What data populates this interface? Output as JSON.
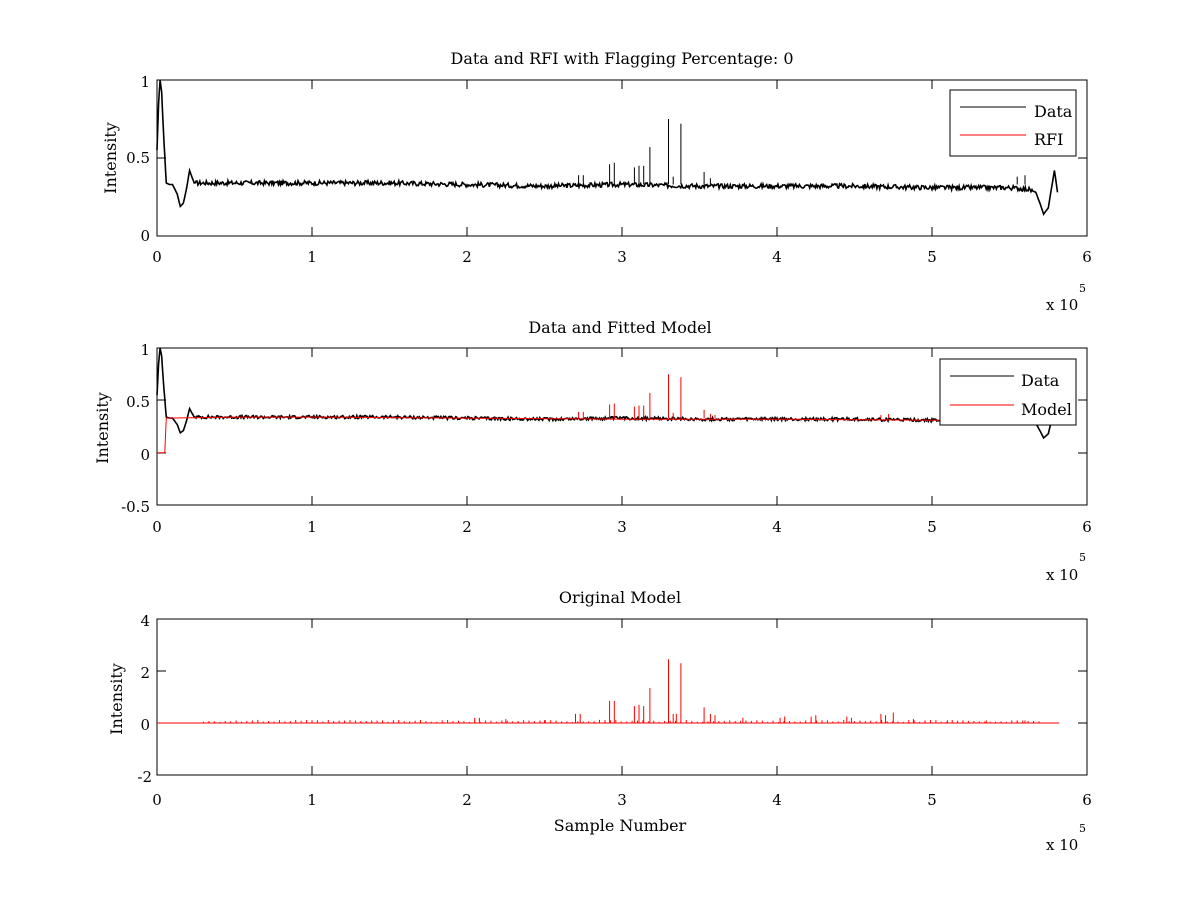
{
  "colors": {
    "data": "#000000",
    "rfi": "#ff0000",
    "axes": "#000000",
    "background": "#ffffff"
  },
  "chart_data": [
    {
      "type": "line",
      "title": "Data and RFI with Flagging Percentage: 0",
      "xlabel": "",
      "ylabel": "Intensity",
      "xlim": [
        0,
        6
      ],
      "ylim": [
        0,
        1
      ],
      "xticks": [
        "0",
        "1",
        "2",
        "3",
        "4",
        "5",
        "6"
      ],
      "yticks": [
        "0",
        "0.5",
        "1"
      ],
      "x_multiplier": {
        "base": "x 10",
        "exp": "5"
      },
      "legend": {
        "position": "top-right",
        "entries": [
          {
            "label": "Data",
            "color": "#000000"
          },
          {
            "label": "RFI",
            "color": "#ff0000"
          }
        ]
      },
      "series": [
        {
          "name": "Data",
          "color": "#000000",
          "points": [
            [
              0,
              0.55
            ],
            [
              0.01,
              0.85
            ],
            [
              0.02,
              1.0
            ],
            [
              0.03,
              0.92
            ],
            [
              0.045,
              0.6
            ],
            [
              0.06,
              0.34
            ],
            [
              0.08,
              0.33
            ],
            [
              0.1,
              0.33
            ],
            [
              0.13,
              0.27
            ],
            [
              0.15,
              0.19
            ],
            [
              0.17,
              0.21
            ],
            [
              0.19,
              0.3
            ],
            [
              0.21,
              0.42
            ],
            [
              0.24,
              0.34
            ],
            [
              0.3,
              0.34
            ],
            [
              0.5,
              0.34
            ],
            [
              1.0,
              0.34
            ],
            [
              1.5,
              0.34
            ],
            [
              2.0,
              0.33
            ],
            [
              2.5,
              0.32
            ],
            [
              3.0,
              0.33
            ],
            [
              3.5,
              0.32
            ],
            [
              4.0,
              0.32
            ],
            [
              4.5,
              0.32
            ],
            [
              5.0,
              0.31
            ],
            [
              5.5,
              0.31
            ],
            [
              5.62,
              0.3
            ],
            [
              5.67,
              0.28
            ],
            [
              5.7,
              0.2
            ],
            [
              5.72,
              0.14
            ],
            [
              5.75,
              0.18
            ],
            [
              5.77,
              0.3
            ],
            [
              5.79,
              0.42
            ],
            [
              5.81,
              0.28
            ]
          ],
          "spikes": [
            [
              2.72,
              0.39
            ],
            [
              2.75,
              0.39
            ],
            [
              2.92,
              0.46
            ],
            [
              2.95,
              0.47
            ],
            [
              3.08,
              0.44
            ],
            [
              3.11,
              0.45
            ],
            [
              3.14,
              0.45
            ],
            [
              3.18,
              0.57
            ],
            [
              3.3,
              0.75
            ],
            [
              3.33,
              0.38
            ],
            [
              3.38,
              0.72
            ],
            [
              3.53,
              0.41
            ],
            [
              3.57,
              0.37
            ],
            [
              5.55,
              0.38
            ],
            [
              5.6,
              0.39
            ]
          ]
        },
        {
          "name": "RFI",
          "color": "#ff0000",
          "points": []
        }
      ]
    },
    {
      "type": "line",
      "title": "Data and Fitted Model",
      "xlabel": "",
      "ylabel": "Intensity",
      "xlim": [
        0,
        6
      ],
      "ylim": [
        -0.5,
        1
      ],
      "xticks": [
        "0",
        "1",
        "2",
        "3",
        "4",
        "5",
        "6"
      ],
      "yticks": [
        "-0.5",
        "0",
        "0.5",
        "1"
      ],
      "x_multiplier": {
        "base": "x 10",
        "exp": "5"
      },
      "legend": {
        "position": "top-right",
        "entries": [
          {
            "label": "Data",
            "color": "#000000"
          },
          {
            "label": "Model",
            "color": "#ff0000"
          }
        ]
      },
      "series": [
        {
          "name": "Data",
          "color": "#000000",
          "points": [
            [
              0,
              0.55
            ],
            [
              0.01,
              0.85
            ],
            [
              0.02,
              1.0
            ],
            [
              0.03,
              0.92
            ],
            [
              0.045,
              0.6
            ],
            [
              0.06,
              0.34
            ],
            [
              0.08,
              0.33
            ],
            [
              0.1,
              0.33
            ],
            [
              0.13,
              0.27
            ],
            [
              0.15,
              0.19
            ],
            [
              0.17,
              0.21
            ],
            [
              0.19,
              0.3
            ],
            [
              0.21,
              0.42
            ],
            [
              0.24,
              0.34
            ],
            [
              0.3,
              0.34
            ],
            [
              0.5,
              0.34
            ],
            [
              1.0,
              0.34
            ],
            [
              1.5,
              0.34
            ],
            [
              2.0,
              0.33
            ],
            [
              2.5,
              0.32
            ],
            [
              3.0,
              0.33
            ],
            [
              3.5,
              0.32
            ],
            [
              4.0,
              0.32
            ],
            [
              4.5,
              0.32
            ],
            [
              5.0,
              0.31
            ],
            [
              5.5,
              0.31
            ],
            [
              5.62,
              0.3
            ],
            [
              5.67,
              0.28
            ],
            [
              5.7,
              0.2
            ],
            [
              5.72,
              0.14
            ],
            [
              5.75,
              0.18
            ],
            [
              5.77,
              0.3
            ],
            [
              5.79,
              0.42
            ],
            [
              5.81,
              0.28
            ]
          ],
          "spikes": []
        },
        {
          "name": "Model",
          "color": "#ff0000",
          "points": [
            [
              0,
              0.0
            ],
            [
              0.05,
              0.0
            ],
            [
              0.06,
              0.33
            ],
            [
              0.5,
              0.34
            ],
            [
              1.0,
              0.34
            ],
            [
              2.0,
              0.33
            ],
            [
              3.0,
              0.32
            ],
            [
              4.0,
              0.32
            ],
            [
              5.0,
              0.31
            ],
            [
              5.5,
              0.31
            ]
          ],
          "spikes": [
            [
              2.72,
              0.39
            ],
            [
              2.75,
              0.39
            ],
            [
              2.92,
              0.46
            ],
            [
              2.95,
              0.47
            ],
            [
              3.08,
              0.44
            ],
            [
              3.11,
              0.45
            ],
            [
              3.14,
              0.45
            ],
            [
              3.18,
              0.57
            ],
            [
              3.3,
              0.75
            ],
            [
              3.33,
              0.38
            ],
            [
              3.38,
              0.72
            ],
            [
              3.53,
              0.41
            ],
            [
              3.57,
              0.37
            ],
            [
              3.6,
              0.36
            ],
            [
              4.67,
              0.36
            ],
            [
              4.72,
              0.37
            ]
          ]
        }
      ]
    },
    {
      "type": "line",
      "title": "Original Model",
      "xlabel": "Sample Number",
      "ylabel": "Intensity",
      "xlim": [
        0,
        6
      ],
      "ylim": [
        -2,
        4
      ],
      "xticks": [
        "0",
        "1",
        "2",
        "3",
        "4",
        "5",
        "6"
      ],
      "yticks": [
        "-2",
        "0",
        "2",
        "4"
      ],
      "x_multiplier": {
        "base": "x 10",
        "exp": "5"
      },
      "series": [
        {
          "color": "#ff0000",
          "points": [
            [
              0,
              0
            ],
            [
              5.82,
              0
            ]
          ],
          "spikes": [
            [
              2.05,
              0.2
            ],
            [
              2.08,
              0.2
            ],
            [
              2.25,
              0.15
            ],
            [
              2.5,
              0.1
            ],
            [
              2.7,
              0.35
            ],
            [
              2.73,
              0.35
            ],
            [
              2.92,
              0.85
            ],
            [
              2.95,
              0.85
            ],
            [
              3.08,
              0.65
            ],
            [
              3.11,
              0.7
            ],
            [
              3.14,
              0.65
            ],
            [
              3.18,
              1.35
            ],
            [
              3.3,
              2.45
            ],
            [
              3.33,
              0.35
            ],
            [
              3.35,
              0.35
            ],
            [
              3.38,
              2.3
            ],
            [
              3.53,
              0.6
            ],
            [
              3.57,
              0.35
            ],
            [
              3.6,
              0.3
            ],
            [
              3.78,
              0.2
            ],
            [
              4.02,
              0.2
            ],
            [
              4.05,
              0.25
            ],
            [
              4.22,
              0.25
            ],
            [
              4.25,
              0.3
            ],
            [
              4.45,
              0.25
            ],
            [
              4.48,
              0.2
            ],
            [
              4.67,
              0.35
            ],
            [
              4.7,
              0.3
            ],
            [
              4.75,
              0.4
            ],
            [
              4.88,
              0.15
            ],
            [
              5.1,
              0.1
            ],
            [
              5.35,
              0.1
            ],
            [
              5.55,
              0.1
            ],
            [
              5.6,
              0.1
            ]
          ]
        }
      ]
    }
  ]
}
